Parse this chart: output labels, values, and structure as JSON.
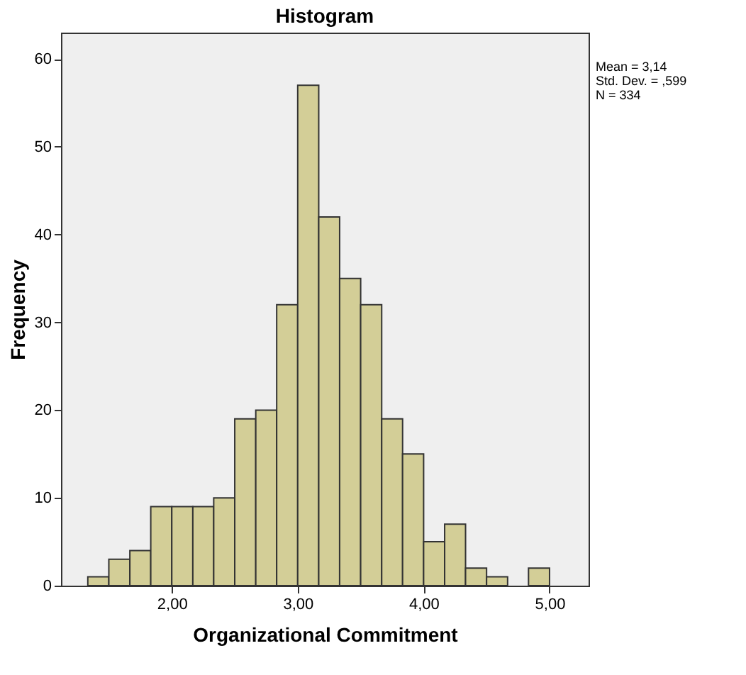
{
  "chart_data": {
    "type": "histogram",
    "title": "Histogram",
    "xlabel": "Organizational Commitment",
    "ylabel": "Frequency",
    "bins": [
      1.333,
      1.5,
      1.667,
      1.833,
      2.0,
      2.167,
      2.333,
      2.5,
      2.667,
      2.833,
      3.0,
      3.167,
      3.333,
      3.5,
      3.667,
      3.833,
      4.0,
      4.167,
      4.333,
      4.5,
      4.667,
      4.833,
      5.0
    ],
    "values": [
      1,
      3,
      4,
      9,
      9,
      9,
      10,
      19,
      20,
      32,
      57,
      42,
      35,
      32,
      19,
      15,
      5,
      7,
      2,
      1,
      0,
      2
    ],
    "color": "#d3ce97",
    "xlim": [
      1.12,
      5.31
    ],
    "ylim": [
      0,
      63
    ],
    "xticks": [
      {
        "value": 2,
        "label": "2,00"
      },
      {
        "value": 3,
        "label": "3,00"
      },
      {
        "value": 4,
        "label": "4,00"
      },
      {
        "value": 5,
        "label": "5,00"
      }
    ],
    "yticks": [
      0,
      10,
      20,
      30,
      40,
      50,
      60
    ],
    "grid": false,
    "annotations": [
      "Mean = 3,14",
      "Std. Dev. = ,599",
      "N = 334"
    ]
  }
}
